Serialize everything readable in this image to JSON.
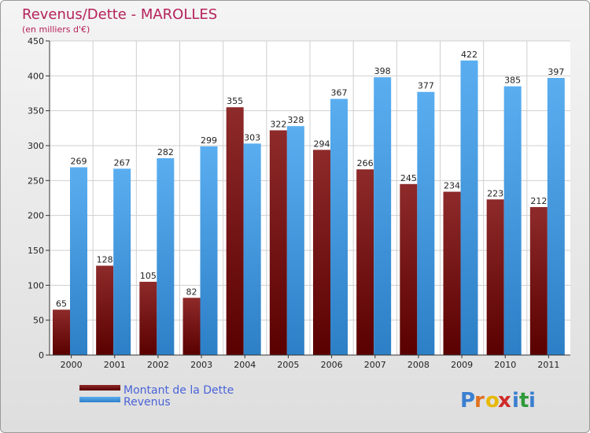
{
  "chart_data": {
    "type": "bar",
    "title": "Revenus/Dette - MAROLLES",
    "subtitle": "(en milliers d'€)",
    "categories": [
      "2000",
      "2001",
      "2002",
      "2003",
      "2004",
      "2005",
      "2006",
      "2007",
      "2008",
      "2009",
      "2010",
      "2011"
    ],
    "series": [
      {
        "name": "Montant de la Dette",
        "color": "#7a1414",
        "values": [
          65,
          128,
          105,
          82,
          355,
          322,
          294,
          266,
          245,
          234,
          223,
          212
        ]
      },
      {
        "name": "Revenus",
        "color": "#4a9ee0",
        "values": [
          269,
          267,
          282,
          299,
          303,
          328,
          367,
          398,
          377,
          422,
          385,
          397
        ]
      }
    ],
    "ylim": [
      0,
      450
    ],
    "yticks": [
      0,
      50,
      100,
      150,
      200,
      250,
      300,
      350,
      400,
      450
    ],
    "grid": true,
    "legend": "bottom-left"
  },
  "brand": {
    "letters": [
      "P",
      "r",
      "o",
      "x",
      "i",
      "t",
      "i"
    ],
    "colors": [
      "#3a7fd0",
      "#e07020",
      "#e8b800",
      "#d02a2a",
      "#3a7fd0",
      "#2f9a3a",
      "#3a7fd0"
    ]
  }
}
